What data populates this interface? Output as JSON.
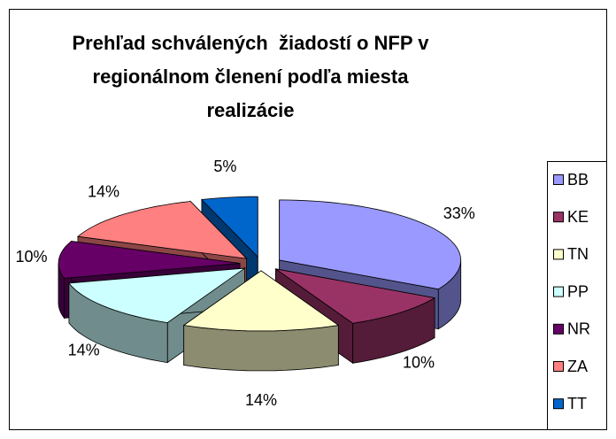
{
  "chart_data": {
    "type": "pie3d",
    "title": "Prehľad schválených  žiadostí o NFP v regionálnom členení podľa miesta realizácie",
    "categories": [
      "BB",
      "KE",
      "TN",
      "PP",
      "NR",
      "ZA",
      "TT"
    ],
    "values": [
      33,
      10,
      14,
      14,
      10,
      14,
      5
    ],
    "value_labels": [
      "33%",
      "10%",
      "14%",
      "14%",
      "10%",
      "14%",
      "5%"
    ],
    "colors": [
      "#9999ff",
      "#993366",
      "#ffffcc",
      "#ccffff",
      "#660066",
      "#ff8080",
      "#0066cc"
    ],
    "legend": "right"
  }
}
